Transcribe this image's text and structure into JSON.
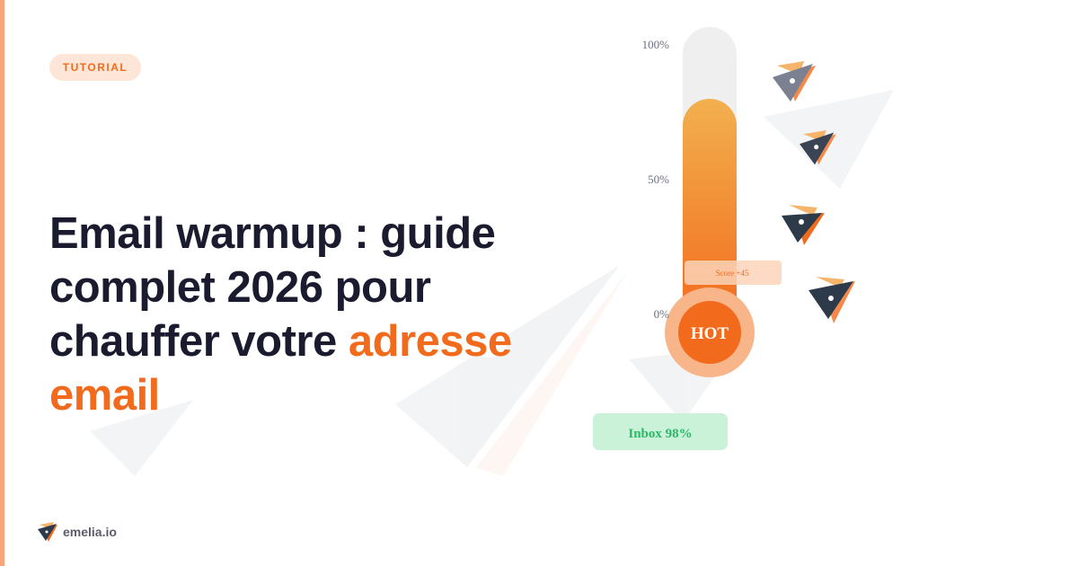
{
  "badge": "TUTORIAL",
  "title": {
    "main": "Email warmup : guide complet 2026 pour chauffer votre",
    "highlight": "adresse email"
  },
  "gauge": {
    "level": 80,
    "ylim": [
      0,
      100
    ],
    "ticks": [
      {
        "value": 100,
        "label": "100%"
      },
      {
        "value": 50,
        "label": "50%"
      },
      {
        "value": 0,
        "label": "0%"
      }
    ],
    "bulb_label": "HOT",
    "score": "Score +45",
    "inbox": "Inbox 98%"
  },
  "brand": "emelia.io"
}
